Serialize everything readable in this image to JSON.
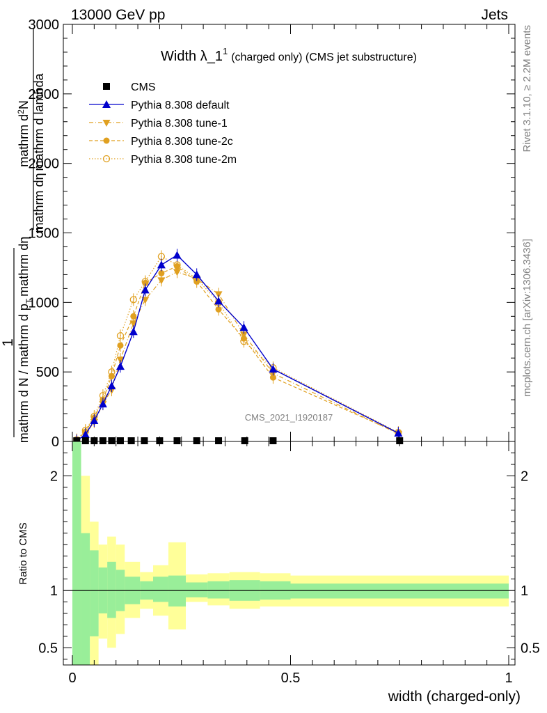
{
  "header": {
    "left": "13000 GeV pp",
    "right": "Jets"
  },
  "side_labels": {
    "rivet": "Rivet 3.1.10, ≥ 2.2M events",
    "mcplots": "mcplots.cern.ch [arXiv:1306.3436]"
  },
  "chart_data": [
    {
      "type": "line",
      "title_main": "Width λ_1",
      "title_sup": "1",
      "title_sub": "(charged only) (CMS jet substructure)",
      "watermark": "CMS_2021_I1920187",
      "ylabel_parts": [
        "1",
        "mathrm d N / mathrm d p",
        "T",
        "mathrm dη",
        "mathrm d lambda",
        "mathrm d",
        "2",
        "N"
      ],
      "ylabel_numerator": "mathrm d²N",
      "ylabel_denominator": "mathrm d p_T mathrm dη mathrm d lambda",
      "ylabel_prefix": "1",
      "ylabel_prefix_den": "mathrm d N / mathrm d p_T mathrm dη mathrm d lambda",
      "xlim": [
        0,
        1
      ],
      "ylim": [
        0,
        3000
      ],
      "y_ticks": [
        0,
        500,
        1000,
        1500,
        2000,
        2500,
        3000
      ],
      "legend": [
        {
          "name": "CMS",
          "color": "#000000",
          "marker": "square",
          "line": "none"
        },
        {
          "name": "Pythia 8.308 default",
          "color": "#0000cc",
          "marker": "triangle-up",
          "line": "solid"
        },
        {
          "name": "Pythia 8.308 tune-1",
          "color": "#e0a020",
          "marker": "triangle-down",
          "line": "dashdot"
        },
        {
          "name": "Pythia 8.308 tune-2c",
          "color": "#e0a020",
          "marker": "circle",
          "line": "dashed"
        },
        {
          "name": "Pythia 8.308 tune-2m",
          "color": "#e0a020",
          "marker": "circle-open",
          "line": "dotted"
        }
      ],
      "cms_x": [
        0.01,
        0.03,
        0.05,
        0.07,
        0.09,
        0.11,
        0.135,
        0.165,
        0.2,
        0.24,
        0.285,
        0.335,
        0.395,
        0.46,
        0.75
      ],
      "cms_y": [
        0,
        0,
        0,
        0,
        0,
        0,
        0,
        0,
        0,
        0,
        0,
        0,
        0,
        0,
        0
      ],
      "series": [
        {
          "name": "Pythia 8.308 default",
          "x": [
            0.01,
            0.03,
            0.05,
            0.07,
            0.09,
            0.11,
            0.14,
            0.167,
            0.204,
            0.24,
            0.285,
            0.335,
            0.393,
            0.46,
            0.747
          ],
          "y": [
            5,
            50,
            150,
            270,
            400,
            540,
            790,
            1090,
            1270,
            1340,
            1200,
            1010,
            820,
            520,
            60
          ]
        },
        {
          "name": "Pythia 8.308 tune-1",
          "x": [
            0.01,
            0.03,
            0.05,
            0.07,
            0.09,
            0.11,
            0.14,
            0.167,
            0.204,
            0.24,
            0.285,
            0.335,
            0.393,
            0.46,
            0.747
          ],
          "y": [
            5,
            50,
            140,
            270,
            370,
            590,
            850,
            1020,
            1160,
            1220,
            1170,
            1060,
            770,
            490,
            55
          ]
        },
        {
          "name": "Pythia 8.308 tune-2c",
          "x": [
            0.01,
            0.03,
            0.05,
            0.07,
            0.09,
            0.11,
            0.14,
            0.167,
            0.204,
            0.24,
            0.285,
            0.335,
            0.393,
            0.46,
            0.747
          ],
          "y": [
            10,
            70,
            170,
            300,
            470,
            690,
            900,
            1140,
            1210,
            1260,
            1150,
            950,
            740,
            460,
            60
          ]
        },
        {
          "name": "Pythia 8.308 tune-2m",
          "x": [
            0.01,
            0.03,
            0.05,
            0.07,
            0.09,
            0.11,
            0.14,
            0.167,
            0.204,
            0.24,
            0.285,
            0.335,
            0.393,
            0.46,
            0.747
          ],
          "y": [
            12,
            80,
            180,
            330,
            500,
            760,
            1020,
            1150,
            1330,
            1270,
            1170,
            1000,
            720,
            530,
            65
          ]
        }
      ]
    },
    {
      "type": "area",
      "ylabel": "Ratio to CMS",
      "xlabel": "width (charged-only)",
      "xlim": [
        0,
        1
      ],
      "ylim": [
        0.35,
        2.3
      ],
      "x_ticks": [
        0,
        0.5,
        1
      ],
      "x_tick_labels": [
        "0",
        "0.5",
        "1"
      ],
      "y_ticks": [
        0.5,
        1,
        2
      ],
      "y_tick_labels": [
        "0.5",
        "1",
        "2"
      ],
      "colors": {
        "inner": "#99ee99",
        "outer": "#ffff99",
        "reference": "#000000"
      },
      "bands": [
        {
          "x0": 0.0,
          "x1": 0.02,
          "inner": [
            0.35,
            2.3
          ],
          "outer": [
            0.35,
            2.3
          ]
        },
        {
          "x0": 0.02,
          "x1": 0.04,
          "inner": [
            0.35,
            1.5
          ],
          "outer": [
            0.35,
            2.0
          ]
        },
        {
          "x0": 0.04,
          "x1": 0.06,
          "inner": [
            0.6,
            1.35
          ],
          "outer": [
            0.35,
            1.6
          ]
        },
        {
          "x0": 0.06,
          "x1": 0.08,
          "inner": [
            0.8,
            1.2
          ],
          "outer": [
            0.58,
            1.4
          ]
        },
        {
          "x0": 0.08,
          "x1": 0.1,
          "inner": [
            0.76,
            1.25
          ],
          "outer": [
            0.5,
            1.47
          ]
        },
        {
          "x0": 0.1,
          "x1": 0.12,
          "inner": [
            0.82,
            1.18
          ],
          "outer": [
            0.62,
            1.4
          ]
        },
        {
          "x0": 0.12,
          "x1": 0.155,
          "inner": [
            0.88,
            1.12
          ],
          "outer": [
            0.76,
            1.25
          ]
        },
        {
          "x0": 0.155,
          "x1": 0.185,
          "inner": [
            0.92,
            1.08
          ],
          "outer": [
            0.84,
            1.16
          ]
        },
        {
          "x0": 0.185,
          "x1": 0.22,
          "inner": [
            0.9,
            1.12
          ],
          "outer": [
            0.78,
            1.22
          ]
        },
        {
          "x0": 0.22,
          "x1": 0.26,
          "inner": [
            0.86,
            1.13
          ],
          "outer": [
            0.66,
            1.42
          ]
        },
        {
          "x0": 0.26,
          "x1": 0.31,
          "inner": [
            0.94,
            1.07
          ],
          "outer": [
            0.9,
            1.14
          ]
        },
        {
          "x0": 0.31,
          "x1": 0.36,
          "inner": [
            0.93,
            1.08
          ],
          "outer": [
            0.87,
            1.15
          ]
        },
        {
          "x0": 0.36,
          "x1": 0.43,
          "inner": [
            0.91,
            1.09
          ],
          "outer": [
            0.84,
            1.16
          ]
        },
        {
          "x0": 0.43,
          "x1": 0.5,
          "inner": [
            0.92,
            1.08
          ],
          "outer": [
            0.86,
            1.15
          ]
        },
        {
          "x0": 0.5,
          "x1": 1.0,
          "inner": [
            0.93,
            1.06
          ],
          "outer": [
            0.86,
            1.13
          ]
        }
      ]
    }
  ]
}
